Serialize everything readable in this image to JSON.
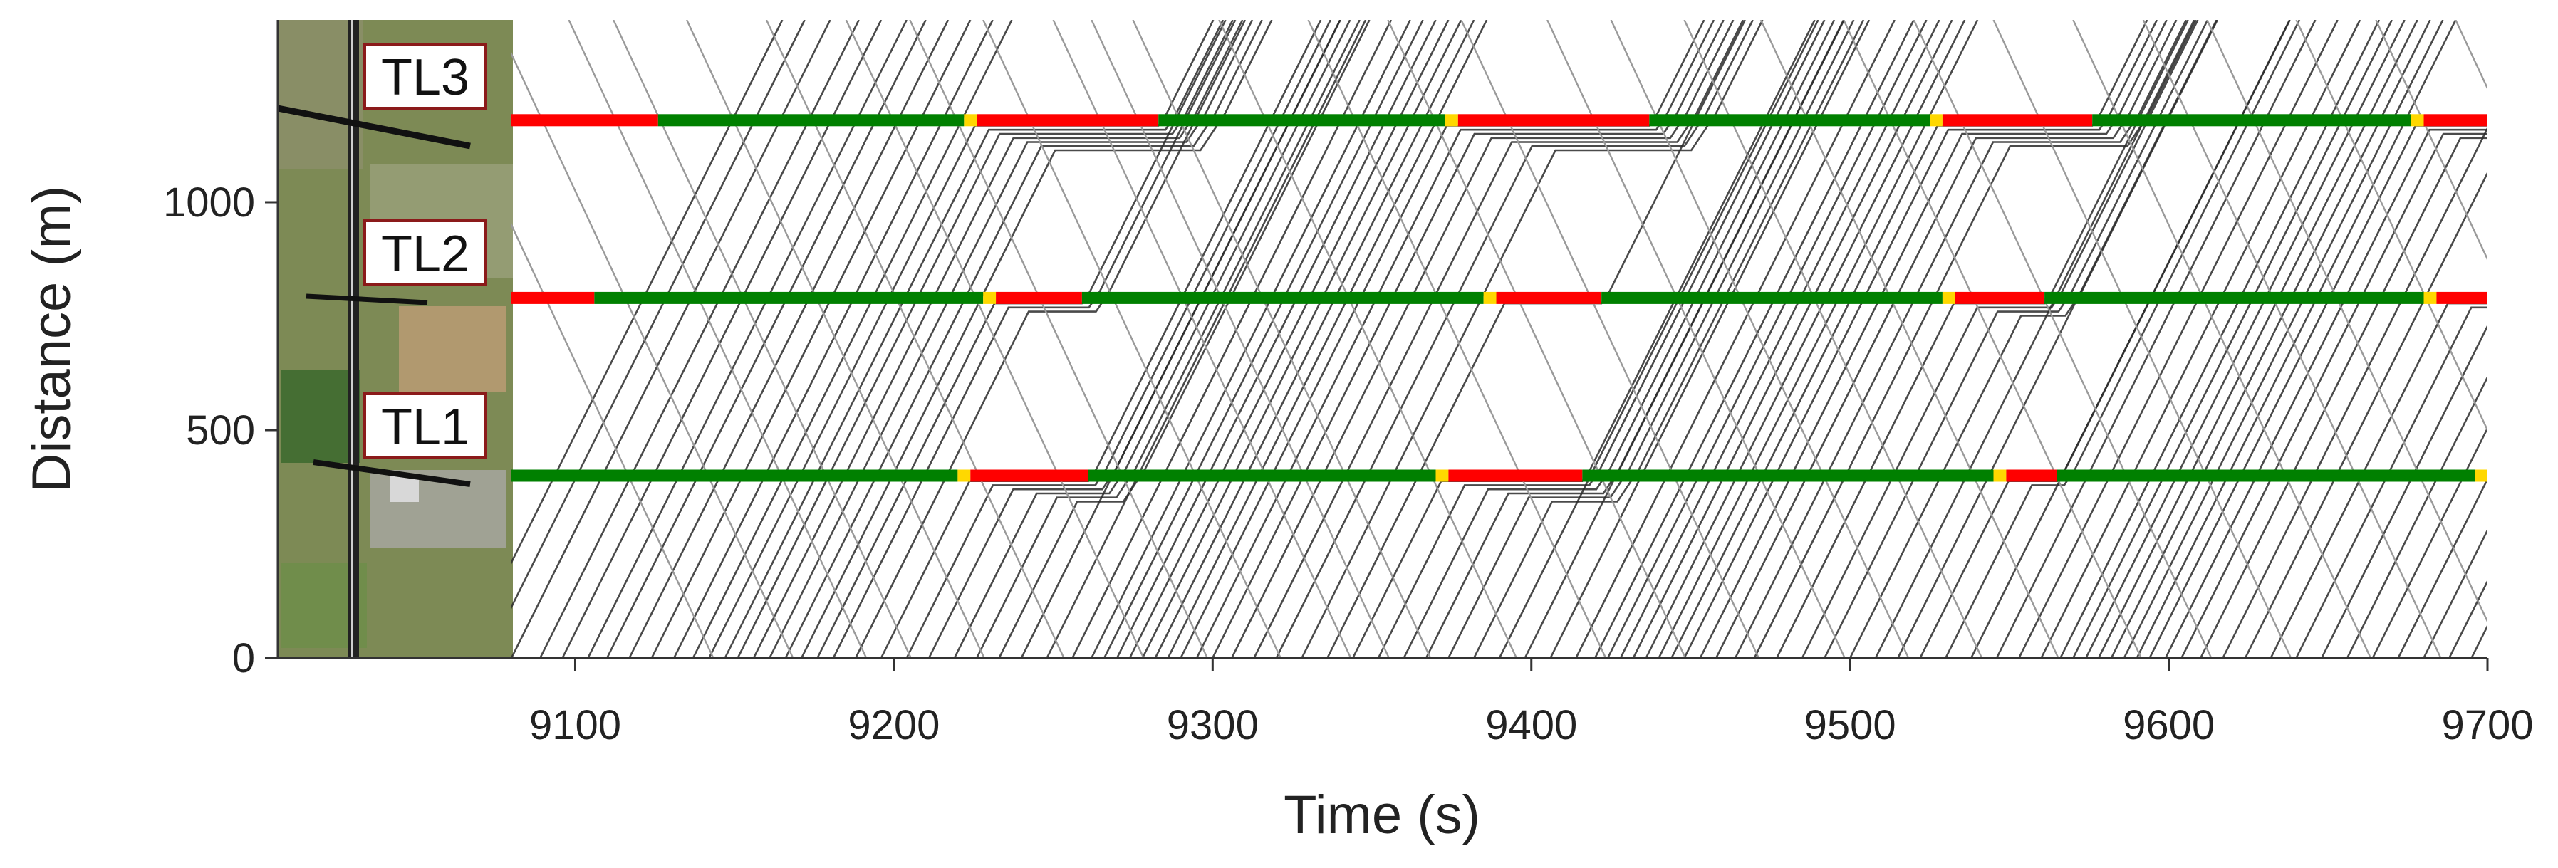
{
  "chart_data": {
    "type": "line",
    "title": "",
    "xlabel": "Time (s)",
    "ylabel": "Distance (m)",
    "xlim": [
      9080,
      9700
    ],
    "ylim": [
      0,
      1400
    ],
    "xticks": [
      9100,
      9200,
      9300,
      9400,
      9500,
      9600,
      9700
    ],
    "yticks": [
      0,
      500,
      1000
    ],
    "grid": false,
    "legend": "none",
    "colors": {
      "green": "#008000",
      "red": "#ff0000",
      "yellow": "#ffd800",
      "trajectory_main": "#2a2a2a",
      "trajectory_opposite": "#9a9a9a"
    },
    "map_inset": {
      "description_icon": "satellite-map",
      "labels": [
        "TL3",
        "TL2",
        "TL1"
      ]
    },
    "signals": [
      {
        "name": "TL1",
        "position_m": 400,
        "phases": [
          {
            "state": "green",
            "start": 9080,
            "end": 9220
          },
          {
            "state": "yellow",
            "start": 9220,
            "end": 9224
          },
          {
            "state": "red",
            "start": 9224,
            "end": 9261
          },
          {
            "state": "green",
            "start": 9261,
            "end": 9370
          },
          {
            "state": "yellow",
            "start": 9370,
            "end": 9374
          },
          {
            "state": "red",
            "start": 9374,
            "end": 9416
          },
          {
            "state": "green",
            "start": 9416,
            "end": 9545
          },
          {
            "state": "yellow",
            "start": 9545,
            "end": 9549
          },
          {
            "state": "red",
            "start": 9549,
            "end": 9565
          },
          {
            "state": "green",
            "start": 9565,
            "end": 9696
          },
          {
            "state": "yellow",
            "start": 9696,
            "end": 9700
          }
        ]
      },
      {
        "name": "TL2",
        "position_m": 790,
        "phases": [
          {
            "state": "red",
            "start": 9080,
            "end": 9106
          },
          {
            "state": "green",
            "start": 9106,
            "end": 9228
          },
          {
            "state": "yellow",
            "start": 9228,
            "end": 9232
          },
          {
            "state": "red",
            "start": 9232,
            "end": 9259
          },
          {
            "state": "green",
            "start": 9259,
            "end": 9385
          },
          {
            "state": "yellow",
            "start": 9385,
            "end": 9389
          },
          {
            "state": "red",
            "start": 9389,
            "end": 9422
          },
          {
            "state": "green",
            "start": 9422,
            "end": 9529
          },
          {
            "state": "yellow",
            "start": 9529,
            "end": 9533
          },
          {
            "state": "red",
            "start": 9533,
            "end": 9561
          },
          {
            "state": "green",
            "start": 9561,
            "end": 9680
          },
          {
            "state": "yellow",
            "start": 9680,
            "end": 9684
          },
          {
            "state": "red",
            "start": 9684,
            "end": 9700
          }
        ]
      },
      {
        "name": "TL3",
        "position_m": 1180,
        "phases": [
          {
            "state": "red",
            "start": 9080,
            "end": 9126
          },
          {
            "state": "green",
            "start": 9126,
            "end": 9222
          },
          {
            "state": "yellow",
            "start": 9222,
            "end": 9226
          },
          {
            "state": "red",
            "start": 9226,
            "end": 9283
          },
          {
            "state": "green",
            "start": 9283,
            "end": 9373
          },
          {
            "state": "yellow",
            "start": 9373,
            "end": 9377
          },
          {
            "state": "red",
            "start": 9377,
            "end": 9437
          },
          {
            "state": "green",
            "start": 9437,
            "end": 9525
          },
          {
            "state": "yellow",
            "start": 9525,
            "end": 9529
          },
          {
            "state": "red",
            "start": 9529,
            "end": 9576
          },
          {
            "state": "green",
            "start": 9576,
            "end": 9676
          },
          {
            "state": "yellow",
            "start": 9676,
            "end": 9680
          },
          {
            "state": "red",
            "start": 9680,
            "end": 9700
          }
        ]
      }
    ],
    "trajectory_spec": {
      "northbound_free_speed_mps": 14,
      "southbound_free_speed_mps": 15,
      "northbound_entry_times": [
        9065,
        9072,
        9080,
        9089,
        9096,
        9104,
        9110,
        9117,
        9124,
        9131,
        9137,
        9142,
        9147,
        9151,
        9156,
        9161,
        9166,
        9171,
        9176,
        9181,
        9188,
        9196,
        9204,
        9211,
        9219,
        9226,
        9233,
        9240,
        9248,
        9256,
        9262,
        9266,
        9270,
        9274,
        9278,
        9282,
        9286,
        9290,
        9295,
        9300,
        9306,
        9313,
        9320,
        9328,
        9336,
        9344,
        9352,
        9360,
        9367,
        9374,
        9382,
        9390,
        9398,
        9406,
        9414,
        9420,
        9424,
        9428,
        9432,
        9436,
        9440,
        9444,
        9448,
        9453,
        9458,
        9464,
        9470,
        9477,
        9485,
        9492,
        9500,
        9508,
        9515,
        9522,
        9530,
        9538,
        9546,
        9553,
        9560,
        9566,
        9570,
        9574,
        9578,
        9582,
        9586,
        9590,
        9594,
        9599,
        9604,
        9610,
        9617,
        9624,
        9632,
        9640,
        9648,
        9656,
        9664,
        9672,
        9680,
        9688,
        9695
      ],
      "southbound_entry_times": [
        9050,
        9075,
        9098,
        9112,
        9135,
        9160,
        9185,
        9205,
        9228,
        9250,
        9262,
        9275,
        9302,
        9330,
        9355,
        9378,
        9405,
        9425,
        9448,
        9472,
        9498,
        9520,
        9545,
        9570,
        9592,
        9612,
        9640,
        9665,
        9690
      ]
    }
  }
}
